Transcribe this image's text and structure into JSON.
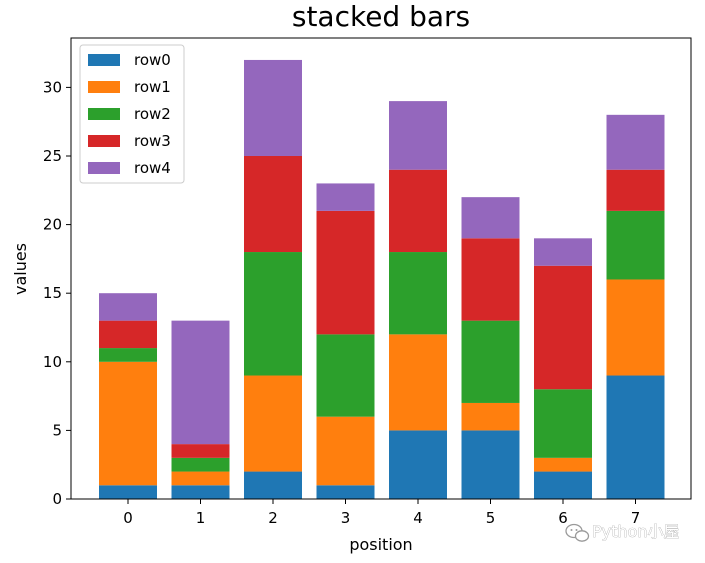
{
  "chart_data": {
    "type": "bar",
    "stacked": true,
    "title": "stacked bars",
    "xlabel": "position",
    "ylabel": "values",
    "categories": [
      "0",
      "1",
      "2",
      "3",
      "4",
      "5",
      "6",
      "7"
    ],
    "series": [
      {
        "name": "row0",
        "color": "#1f77b4",
        "values": [
          1,
          1,
          2,
          1,
          5,
          5,
          2,
          9
        ]
      },
      {
        "name": "row1",
        "color": "#ff7f0e",
        "values": [
          9,
          1,
          7,
          5,
          7,
          2,
          1,
          7
        ]
      },
      {
        "name": "row2",
        "color": "#2ca02c",
        "values": [
          1,
          1,
          9,
          6,
          6,
          6,
          5,
          5
        ]
      },
      {
        "name": "row3",
        "color": "#d62728",
        "values": [
          2,
          1,
          7,
          9,
          6,
          6,
          9,
          3
        ]
      },
      {
        "name": "row4",
        "color": "#9467bd",
        "values": [
          2,
          9,
          7,
          2,
          5,
          3,
          2,
          4
        ]
      }
    ],
    "ylim": [
      0,
      33.6
    ],
    "yticks": [
      0,
      5,
      10,
      15,
      20,
      25,
      30
    ],
    "legend": "upper-left",
    "grid": false
  },
  "watermark": {
    "text": "Python小屋",
    "icon": "wechat-icon"
  }
}
